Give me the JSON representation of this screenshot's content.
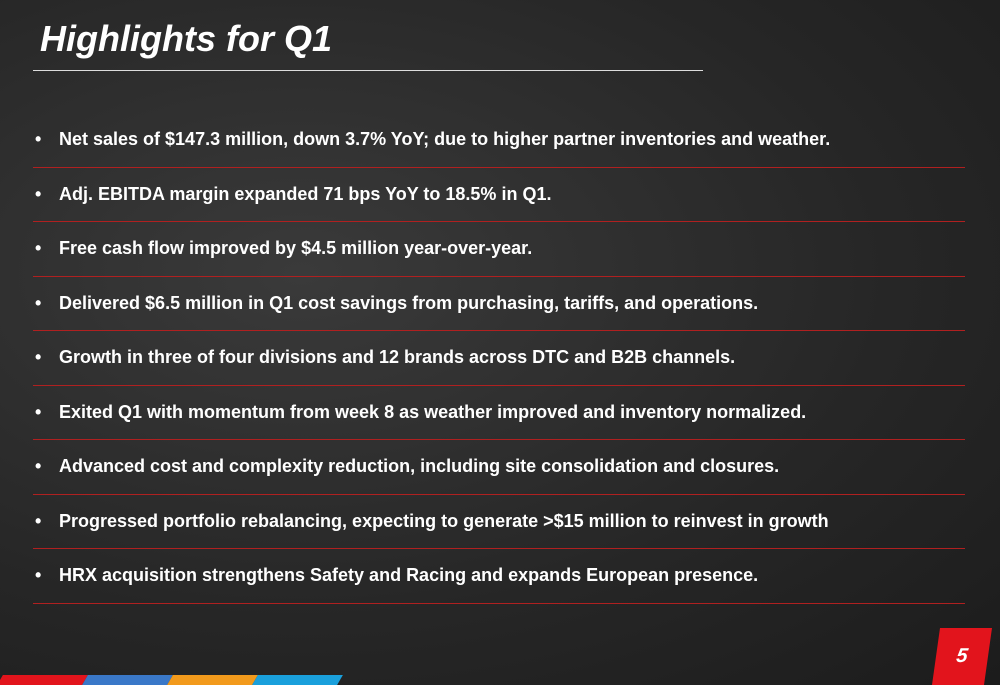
{
  "header": {
    "title": "Highlights for Q1"
  },
  "bullets": [
    "Net sales of $147.3 million, down 3.7% YoY; due to higher partner inventories and weather.",
    "Adj. EBITDA margin expanded 71 bps YoY to 18.5% in Q1.",
    "Free cash flow improved by $4.5 million year-over-year.",
    "Delivered $6.5 million in Q1 cost savings from purchasing, tariffs, and operations.",
    "Growth in three of four divisions and 12 brands across DTC and B2B channels.",
    "Exited Q1 with momentum from week 8 as weather improved and inventory normalized.",
    "Advanced cost and complexity reduction, including site consolidation and closures.",
    "Progressed portfolio rebalancing, expecting to generate >$15 million to reinvest in growth",
    "HRX acquisition strengthens Safety and Racing and expands European presence."
  ],
  "footer": {
    "page_number": "5"
  }
}
